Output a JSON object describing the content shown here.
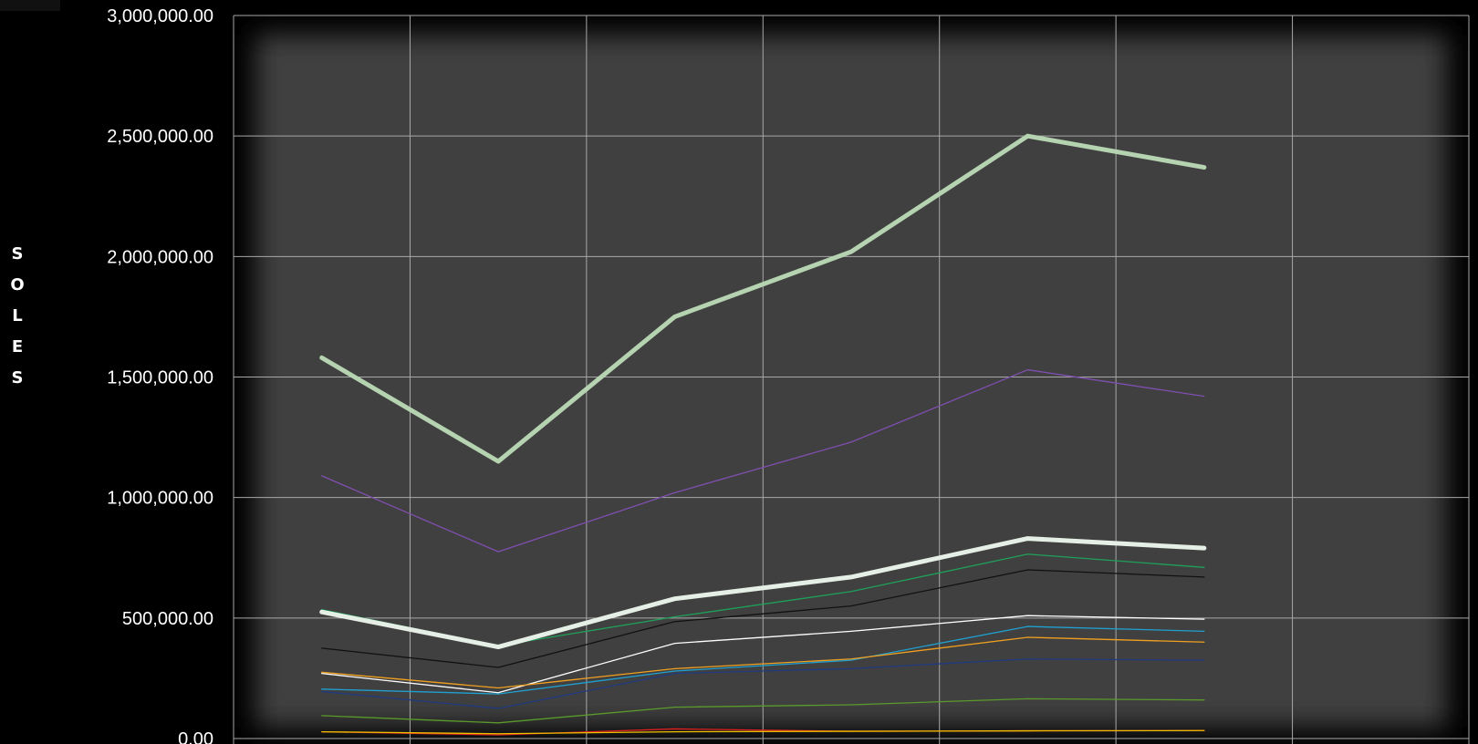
{
  "chart_data": {
    "type": "line",
    "title": "",
    "xlabel": "",
    "ylabel": "SOLES",
    "ylim": [
      0,
      3000000
    ],
    "y_ticks": [
      "0.00",
      "500,000.00",
      "1,000,000.00",
      "1,500,000.00",
      "2,000,000.00",
      "2,500,000.00",
      "3,000,000.00"
    ],
    "x_count": 7,
    "grid": true,
    "legend": "none",
    "plot_background": "#404040",
    "page_background": "#000000",
    "series": [
      {
        "color": "#b5d3b0",
        "width": 5,
        "values": [
          1580000,
          1150000,
          1750000,
          2020000,
          2500000,
          2370000
        ]
      },
      {
        "color": "#7f4fb0",
        "width": 1.3,
        "values": [
          1090000,
          775000,
          1020000,
          1230000,
          1530000,
          1420000
        ]
      },
      {
        "color": "#e6efe6",
        "width": 5,
        "values": [
          525000,
          380000,
          580000,
          670000,
          830000,
          790000
        ]
      },
      {
        "color": "#1fa05a",
        "width": 1.3,
        "values": [
          535000,
          385000,
          505000,
          610000,
          765000,
          710000
        ]
      },
      {
        "color": "#111111",
        "width": 1.3,
        "values": [
          375000,
          295000,
          485000,
          550000,
          700000,
          670000
        ]
      },
      {
        "color": "#ffffff",
        "width": 1.3,
        "values": [
          270000,
          190000,
          395000,
          445000,
          510000,
          495000
        ]
      },
      {
        "color": "#20a0d0",
        "width": 1.3,
        "values": [
          205000,
          185000,
          280000,
          325000,
          465000,
          445000
        ]
      },
      {
        "color": "#f0a020",
        "width": 1.3,
        "values": [
          275000,
          210000,
          290000,
          330000,
          420000,
          400000
        ]
      },
      {
        "color": "#1f3a80",
        "width": 1.3,
        "values": [
          195000,
          125000,
          270000,
          290000,
          330000,
          325000
        ]
      },
      {
        "color": "#5a9a2a",
        "width": 1.3,
        "values": [
          95000,
          65000,
          130000,
          140000,
          165000,
          160000
        ]
      },
      {
        "color": "#e02020",
        "width": 1.3,
        "values": [
          28000,
          15000,
          40000,
          30000,
          32000,
          33000
        ]
      },
      {
        "color": "#f0c000",
        "width": 1.3,
        "values": [
          28000,
          20000,
          28000,
          30000,
          32000,
          33000
        ]
      }
    ]
  }
}
